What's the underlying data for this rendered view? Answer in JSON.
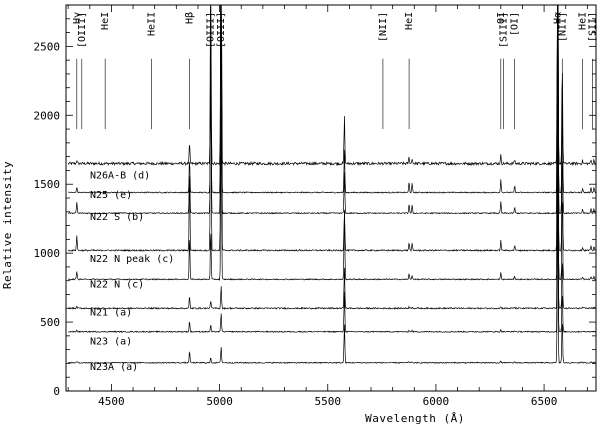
{
  "chart_data": {
    "type": "line",
    "xlabel": "Wavelength (Å)",
    "ylabel": "Relative intensity",
    "xlim": [
      4290,
      6740
    ],
    "ylim": [
      0,
      2800
    ],
    "xticks": [
      4500,
      5000,
      5500,
      6000,
      6500
    ],
    "yticks": [
      0,
      500,
      1000,
      1500,
      2000,
      2500
    ],
    "grid": false,
    "legend": "none",
    "series": [
      {
        "name": "N26A-B (d)",
        "baseline": 1650,
        "label_y": 1570
      },
      {
        "name": "N25 (e)",
        "baseline": 1440,
        "label_y": 1430
      },
      {
        "name": "N22 S (b)",
        "baseline": 1290,
        "label_y": 1270
      },
      {
        "name": "N22 N peak (c)",
        "baseline": 1020,
        "label_y": 965
      },
      {
        "name": "N22 N (c)",
        "baseline": 810,
        "label_y": 780
      },
      {
        "name": "N21 (a)",
        "baseline": 600,
        "label_y": 575
      },
      {
        "name": "N23 (a)",
        "baseline": 430,
        "label_y": 365
      },
      {
        "name": "N23A (a)",
        "baseline": 205,
        "label_y": 180
      }
    ],
    "emission_lines": [
      {
        "label": "Hγ",
        "wavelength": 4340
      },
      {
        "label": "[OIII]",
        "wavelength": 4363
      },
      {
        "label": "HeI",
        "wavelength": 4471
      },
      {
        "label": "HeII",
        "wavelength": 4686
      },
      {
        "label": "Hβ",
        "wavelength": 4861
      },
      {
        "label": "[OIII]",
        "wavelength": 4959
      },
      {
        "label": "[OIII]",
        "wavelength": 5007
      },
      {
        "label": "[NII]",
        "wavelength": 5755
      },
      {
        "label": "HeI",
        "wavelength": 5876
      },
      {
        "label": "OI",
        "wavelength": 6300
      },
      {
        "label": "[SIII]",
        "wavelength": 6312
      },
      {
        "label": "[OI]",
        "wavelength": 6364
      },
      {
        "label": "Hα",
        "wavelength": 6563
      },
      {
        "label": "[NII]",
        "wavelength": 6584
      },
      {
        "label": "HeI",
        "wavelength": 6678
      },
      {
        "label": "[SII]",
        "wavelength": 6724
      }
    ]
  }
}
